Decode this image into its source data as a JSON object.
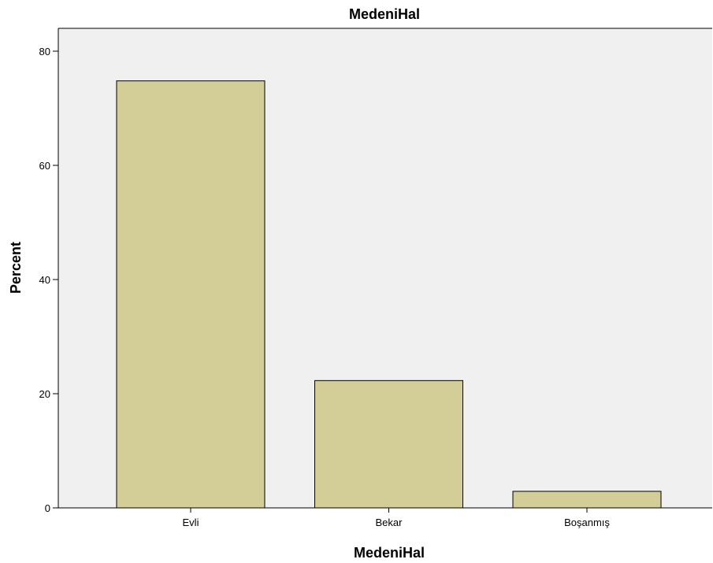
{
  "chart_data": {
    "type": "bar",
    "title": "MedeniHal",
    "xlabel": "MedeniHal",
    "ylabel": "Percent",
    "categories": [
      "Evli",
      "Bekar",
      "Boşanmış"
    ],
    "values": [
      74.8,
      22.3,
      2.9
    ],
    "ylim": [
      0,
      84
    ],
    "yticks": [
      0,
      20,
      40,
      60,
      80
    ],
    "ytick_labels": [
      "0",
      "20",
      "40",
      "60",
      "80"
    ],
    "grid": false,
    "legend": "none",
    "colors": {
      "plot_background": "#f0f0f0",
      "bar_fill": "#d3ce97",
      "bar_stroke": "#000000",
      "axis": "#000000"
    }
  }
}
